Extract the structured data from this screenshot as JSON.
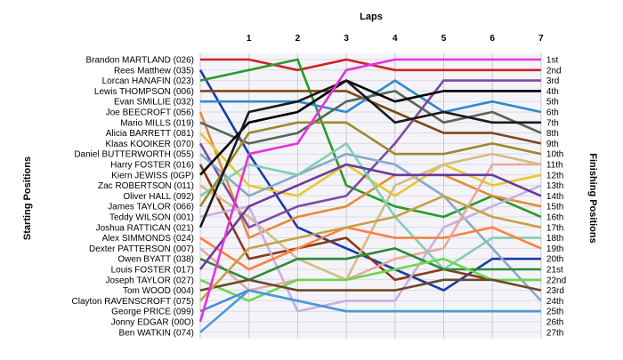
{
  "chart_data": {
    "type": "line",
    "title": "Laps",
    "ylabel_left": "Starting Positions",
    "ylabel_right": "Finishing Positions",
    "x": [
      0,
      1,
      2,
      3,
      4,
      5,
      6,
      7
    ],
    "x_tick_labels": [
      "1",
      "2",
      "3",
      "4",
      "5",
      "6",
      "7"
    ],
    "starting_order": [
      "Brandon MARTLAND (026)",
      "Rees Matthew (035)",
      "Lorcan HANAFIN (023)",
      "Lewis THOMPSON (006)",
      "Evan SMILLIE (032)",
      "Joe BEECROFT (056)",
      "Mario MILLS (019)",
      "Alicia BARRETT (081)",
      "Klaas KOOIKER (070)",
      "Daniel BUTTERWORTH (055)",
      "Harry FOSTER (016)",
      "Kiern JEWISS (0GP)",
      "Zac ROBERTSON (011)",
      "Oliver HALL (092)",
      "James TAYLOR (066)",
      "Teddy WILSON (001)",
      "Joshua RATTICAN (021)",
      "Alex SIMMONDS (024)",
      "Dexter PATTERSON (007)",
      "Owen BYATT (038)",
      "Louis FOSTER (017)",
      "Joseph TAYLOR (027)",
      "Tom WOOD (004)",
      "Clayton RAVENSCROFT (075)",
      "George PRICE (099)",
      "Jonny EDGAR (00O)",
      "Ben WATKIN (074)"
    ],
    "finishing_labels": [
      "1st",
      "2nd",
      "3rd",
      "4th",
      "5th",
      "6th",
      "7th",
      "8th",
      "9th",
      "10th",
      "11th",
      "12th",
      "13th",
      "14th",
      "15th",
      "16th",
      "17th",
      "18th",
      "19th",
      "20th",
      "21st",
      "22nd",
      "23rd",
      "24th",
      "25th",
      "26th",
      "27th"
    ],
    "series": [
      {
        "color": "#cc2222",
        "values": [
          1,
          1,
          2,
          1,
          2,
          2,
          2,
          2
        ]
      },
      {
        "color": "#1a3aa8",
        "values": [
          2,
          10,
          17,
          19,
          21,
          23,
          20,
          20
        ]
      },
      {
        "color": "#2a9a2a",
        "values": [
          3,
          2,
          1,
          13,
          15,
          16,
          14,
          16
        ]
      },
      {
        "color": "#7a4a1a",
        "values": [
          4,
          4,
          4,
          4,
          6,
          8,
          8,
          9
        ]
      },
      {
        "color": "#3388cc",
        "values": [
          5,
          5,
          5,
          6,
          3,
          6,
          5,
          6
        ]
      },
      {
        "color": "#e68a3a",
        "values": [
          6,
          18,
          16,
          15,
          12,
          12,
          14,
          15
        ]
      },
      {
        "color": "#556655",
        "values": [
          7,
          9,
          8,
          5,
          4,
          7,
          6,
          8
        ]
      },
      {
        "color": "#e8c830",
        "values": [
          8,
          13,
          14,
          11,
          14,
          11,
          13,
          12
        ]
      },
      {
        "color": "#7d4aa0",
        "values": [
          9,
          17,
          15,
          14,
          9,
          3,
          3,
          3
        ]
      },
      {
        "color": "#88a8c8",
        "values": [
          10,
          14,
          12,
          10,
          11,
          14,
          19,
          24
        ]
      },
      {
        "color": "#8a3a1a",
        "values": [
          11,
          20,
          19,
          18,
          22,
          21,
          22,
          22
        ]
      },
      {
        "color": "#000000",
        "values": [
          12,
          7,
          6,
          3,
          5,
          4,
          4,
          4
        ]
      },
      {
        "color": "#d4bb88",
        "values": [
          13,
          16,
          20,
          22,
          13,
          11,
          10,
          11
        ]
      },
      {
        "color": "#7ecfb4",
        "values": [
          14,
          11,
          12,
          9,
          16,
          21,
          18,
          18
        ]
      },
      {
        "color": "#9a8a2a",
        "values": [
          15,
          8,
          7,
          7,
          10,
          10,
          9,
          10
        ]
      },
      {
        "color": "#c8b0e0",
        "values": [
          16,
          15,
          25,
          24,
          24,
          17,
          15,
          13
        ]
      },
      {
        "color": "#1a1a1a",
        "values": [
          17,
          6,
          5,
          3,
          7,
          6,
          7,
          7
        ]
      },
      {
        "color": "#ff8040",
        "values": [
          18,
          21,
          19,
          17,
          18,
          18,
          17,
          19
        ]
      },
      {
        "color": "#e8a8a0",
        "values": [
          19,
          23,
          22,
          22,
          20,
          19,
          11,
          11
        ]
      },
      {
        "color": "#2a8a3a",
        "values": [
          20,
          22,
          20,
          20,
          19,
          21,
          21,
          21
        ]
      },
      {
        "color": "#6a3a9a",
        "values": [
          21,
          15,
          13,
          11,
          12,
          12,
          12,
          14
        ]
      },
      {
        "color": "#6ad84a",
        "values": [
          22,
          24,
          22,
          22,
          21,
          20,
          22,
          22
        ]
      },
      {
        "color": "#6a4a2a",
        "values": [
          23,
          22,
          23,
          23,
          23,
          22,
          22,
          23
        ]
      },
      {
        "color": "#c8a048",
        "values": [
          24,
          19,
          18,
          17,
          16,
          14,
          16,
          17
        ]
      },
      {
        "color": "#4a8ad8",
        "values": [
          25,
          23,
          24,
          25,
          25,
          25,
          25,
          25
        ]
      },
      {
        "color": "#e830e0",
        "values": [
          26,
          10,
          9,
          2,
          1,
          1,
          1,
          1
        ]
      },
      {
        "color": "#4a9ad8",
        "values": [
          27,
          23,
          24,
          25,
          25,
          25,
          25,
          25
        ]
      }
    ],
    "grid": true,
    "legend": "none"
  }
}
